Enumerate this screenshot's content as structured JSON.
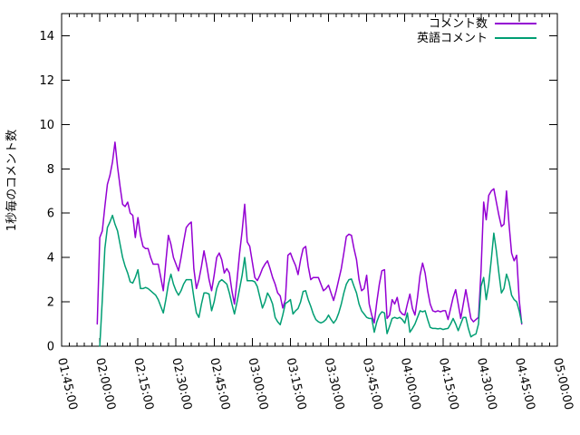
{
  "chart_data": {
    "type": "line",
    "title": "",
    "xlabel": "",
    "ylabel": "1秒毎のコメント数",
    "ylim": [
      0,
      15
    ],
    "ytick_values": [
      0,
      2,
      4,
      6,
      8,
      10,
      12,
      14
    ],
    "x_start": "01:45:00",
    "x_end": "05:00:00",
    "xtick_interval_min": 15,
    "xtick_minor_interval_min": 3,
    "xtick_labels": [
      "01:45:00",
      "02:00:00",
      "02:15:00",
      "02:30:00",
      "02:45:00",
      "03:00:00",
      "03:15:00",
      "03:30:00",
      "03:45:00",
      "04:00:00",
      "04:15:00",
      "04:30:00",
      "04:45:00",
      "05:00:00"
    ],
    "grid": false,
    "legend_position": "top-right-inside",
    "border_color": "#000000",
    "series": [
      {
        "name": "コメント数",
        "color": "#9400d3",
        "start": "01:59:00",
        "interval_sec": 60,
        "values": [
          1.0,
          4.9,
          5.2,
          6.3,
          7.3,
          7.7,
          8.3,
          9.2,
          8.1,
          7.2,
          6.4,
          6.3,
          6.5,
          6.0,
          5.9,
          4.9,
          5.8,
          5.0,
          4.5,
          4.4,
          4.4,
          4.0,
          3.7,
          3.7,
          3.7,
          3.1,
          2.5,
          3.8,
          5.0,
          4.6,
          4.0,
          3.7,
          3.4,
          4.0,
          4.7,
          5.35,
          5.5,
          5.6,
          3.5,
          2.6,
          3.0,
          3.6,
          4.3,
          3.7,
          3.0,
          2.5,
          3.2,
          4.0,
          4.2,
          3.9,
          3.3,
          3.5,
          3.3,
          2.5,
          1.9,
          3.0,
          4.2,
          5.2,
          6.4,
          4.7,
          4.5,
          3.8,
          3.1,
          2.96,
          3.2,
          3.5,
          3.7,
          3.85,
          3.5,
          3.1,
          2.8,
          2.4,
          2.27,
          1.72,
          2.1,
          4.1,
          4.2,
          3.9,
          3.64,
          3.23,
          3.9,
          4.4,
          4.5,
          3.6,
          3.0,
          3.1,
          3.1,
          3.1,
          2.8,
          2.5,
          2.6,
          2.75,
          2.4,
          2.06,
          2.5,
          3.0,
          3.5,
          4.2,
          4.95,
          5.05,
          5.0,
          4.4,
          3.9,
          3.0,
          2.5,
          2.6,
          3.2,
          1.9,
          1.4,
          1.05,
          2.0,
          2.8,
          3.4,
          3.45,
          1.25,
          1.4,
          2.1,
          1.9,
          2.2,
          1.6,
          1.45,
          1.4,
          1.9,
          2.35,
          1.7,
          1.4,
          2.2,
          3.2,
          3.75,
          3.3,
          2.5,
          1.9,
          1.6,
          1.55,
          1.6,
          1.55,
          1.6,
          1.6,
          1.2,
          1.7,
          2.2,
          2.55,
          1.9,
          1.25,
          1.9,
          2.55,
          1.9,
          1.25,
          1.1,
          1.2,
          1.3,
          3.4,
          6.5,
          5.7,
          6.8,
          7.0,
          7.1,
          6.5,
          5.9,
          5.4,
          5.5,
          7.0,
          5.5,
          4.2,
          3.85,
          4.1,
          2.1,
          1.0
        ]
      },
      {
        "name": "英語コメント",
        "color": "#009e73",
        "start": "02:00:00",
        "interval_sec": 60,
        "values": [
          0,
          2.1,
          4.4,
          5.35,
          5.6,
          5.9,
          5.5,
          5.2,
          4.6,
          4.0,
          3.6,
          3.3,
          2.9,
          2.85,
          3.1,
          3.45,
          2.6,
          2.6,
          2.65,
          2.6,
          2.5,
          2.4,
          2.3,
          2.1,
          1.8,
          1.5,
          2.1,
          2.8,
          3.25,
          2.8,
          2.5,
          2.3,
          2.5,
          2.8,
          3.0,
          3.0,
          3.0,
          2.2,
          1.5,
          1.3,
          1.9,
          2.4,
          2.4,
          2.35,
          1.6,
          2.0,
          2.6,
          2.9,
          3.0,
          2.9,
          2.8,
          2.4,
          1.9,
          1.45,
          2.0,
          2.6,
          3.2,
          4.0,
          2.95,
          2.95,
          2.95,
          2.9,
          2.68,
          2.2,
          1.72,
          2.0,
          2.4,
          2.2,
          1.9,
          1.3,
          1.1,
          0.97,
          1.4,
          1.93,
          2.0,
          2.1,
          1.45,
          1.6,
          1.7,
          2.0,
          2.47,
          2.5,
          2.1,
          1.8,
          1.45,
          1.2,
          1.1,
          1.05,
          1.1,
          1.2,
          1.4,
          1.2,
          1.04,
          1.2,
          1.5,
          1.9,
          2.4,
          2.8,
          3.0,
          3.03,
          2.7,
          2.4,
          1.9,
          1.6,
          1.45,
          1.3,
          1.25,
          1.25,
          0.63,
          1.1,
          1.4,
          1.55,
          1.5,
          0.57,
          0.9,
          1.25,
          1.3,
          1.25,
          1.3,
          1.2,
          1.04,
          1.5,
          0.63,
          0.8,
          1.0,
          1.3,
          1.6,
          1.55,
          1.6,
          1.2,
          0.85,
          0.8,
          0.8,
          0.78,
          0.8,
          0.75,
          0.78,
          0.8,
          1.0,
          1.25,
          1.0,
          0.7,
          1.0,
          1.3,
          1.3,
          0.8,
          0.42,
          0.5,
          0.55,
          1.0,
          2.7,
          3.1,
          2.1,
          2.8,
          3.9,
          5.1,
          4.3,
          3.3,
          2.4,
          2.6,
          3.25,
          2.9,
          2.3,
          2.1,
          2.0,
          1.6,
          1.05
        ]
      }
    ]
  }
}
